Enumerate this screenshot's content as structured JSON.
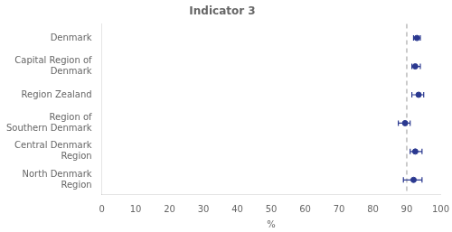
{
  "chart_data": {
    "type": "dot",
    "orientation": "horizontal",
    "title": "Indicator 3",
    "x_label": "%",
    "categories": [
      "Denmark",
      "Capital Region of\nDenmark",
      "Region Zealand",
      "Region of\nSouthern Denmark",
      "Central Denmark\nRegion",
      "North Denmark\nRegion"
    ],
    "values": [
      93.0,
      92.5,
      93.5,
      89.5,
      92.5,
      92.0
    ],
    "error_low": [
      1.0,
      1.0,
      2.0,
      2.0,
      1.5,
      3.0
    ],
    "error_high": [
      1.0,
      1.5,
      1.5,
      1.5,
      2.0,
      2.5
    ],
    "color": "#2B3990",
    "reference_line": {
      "x": 90.0,
      "color": "#AAAAAA",
      "line_style": "dashed"
    },
    "xlim": [
      0,
      100
    ],
    "xticks": [
      0,
      10,
      20,
      30,
      40,
      50,
      60,
      70,
      80,
      90,
      100
    ],
    "grid": false
  }
}
